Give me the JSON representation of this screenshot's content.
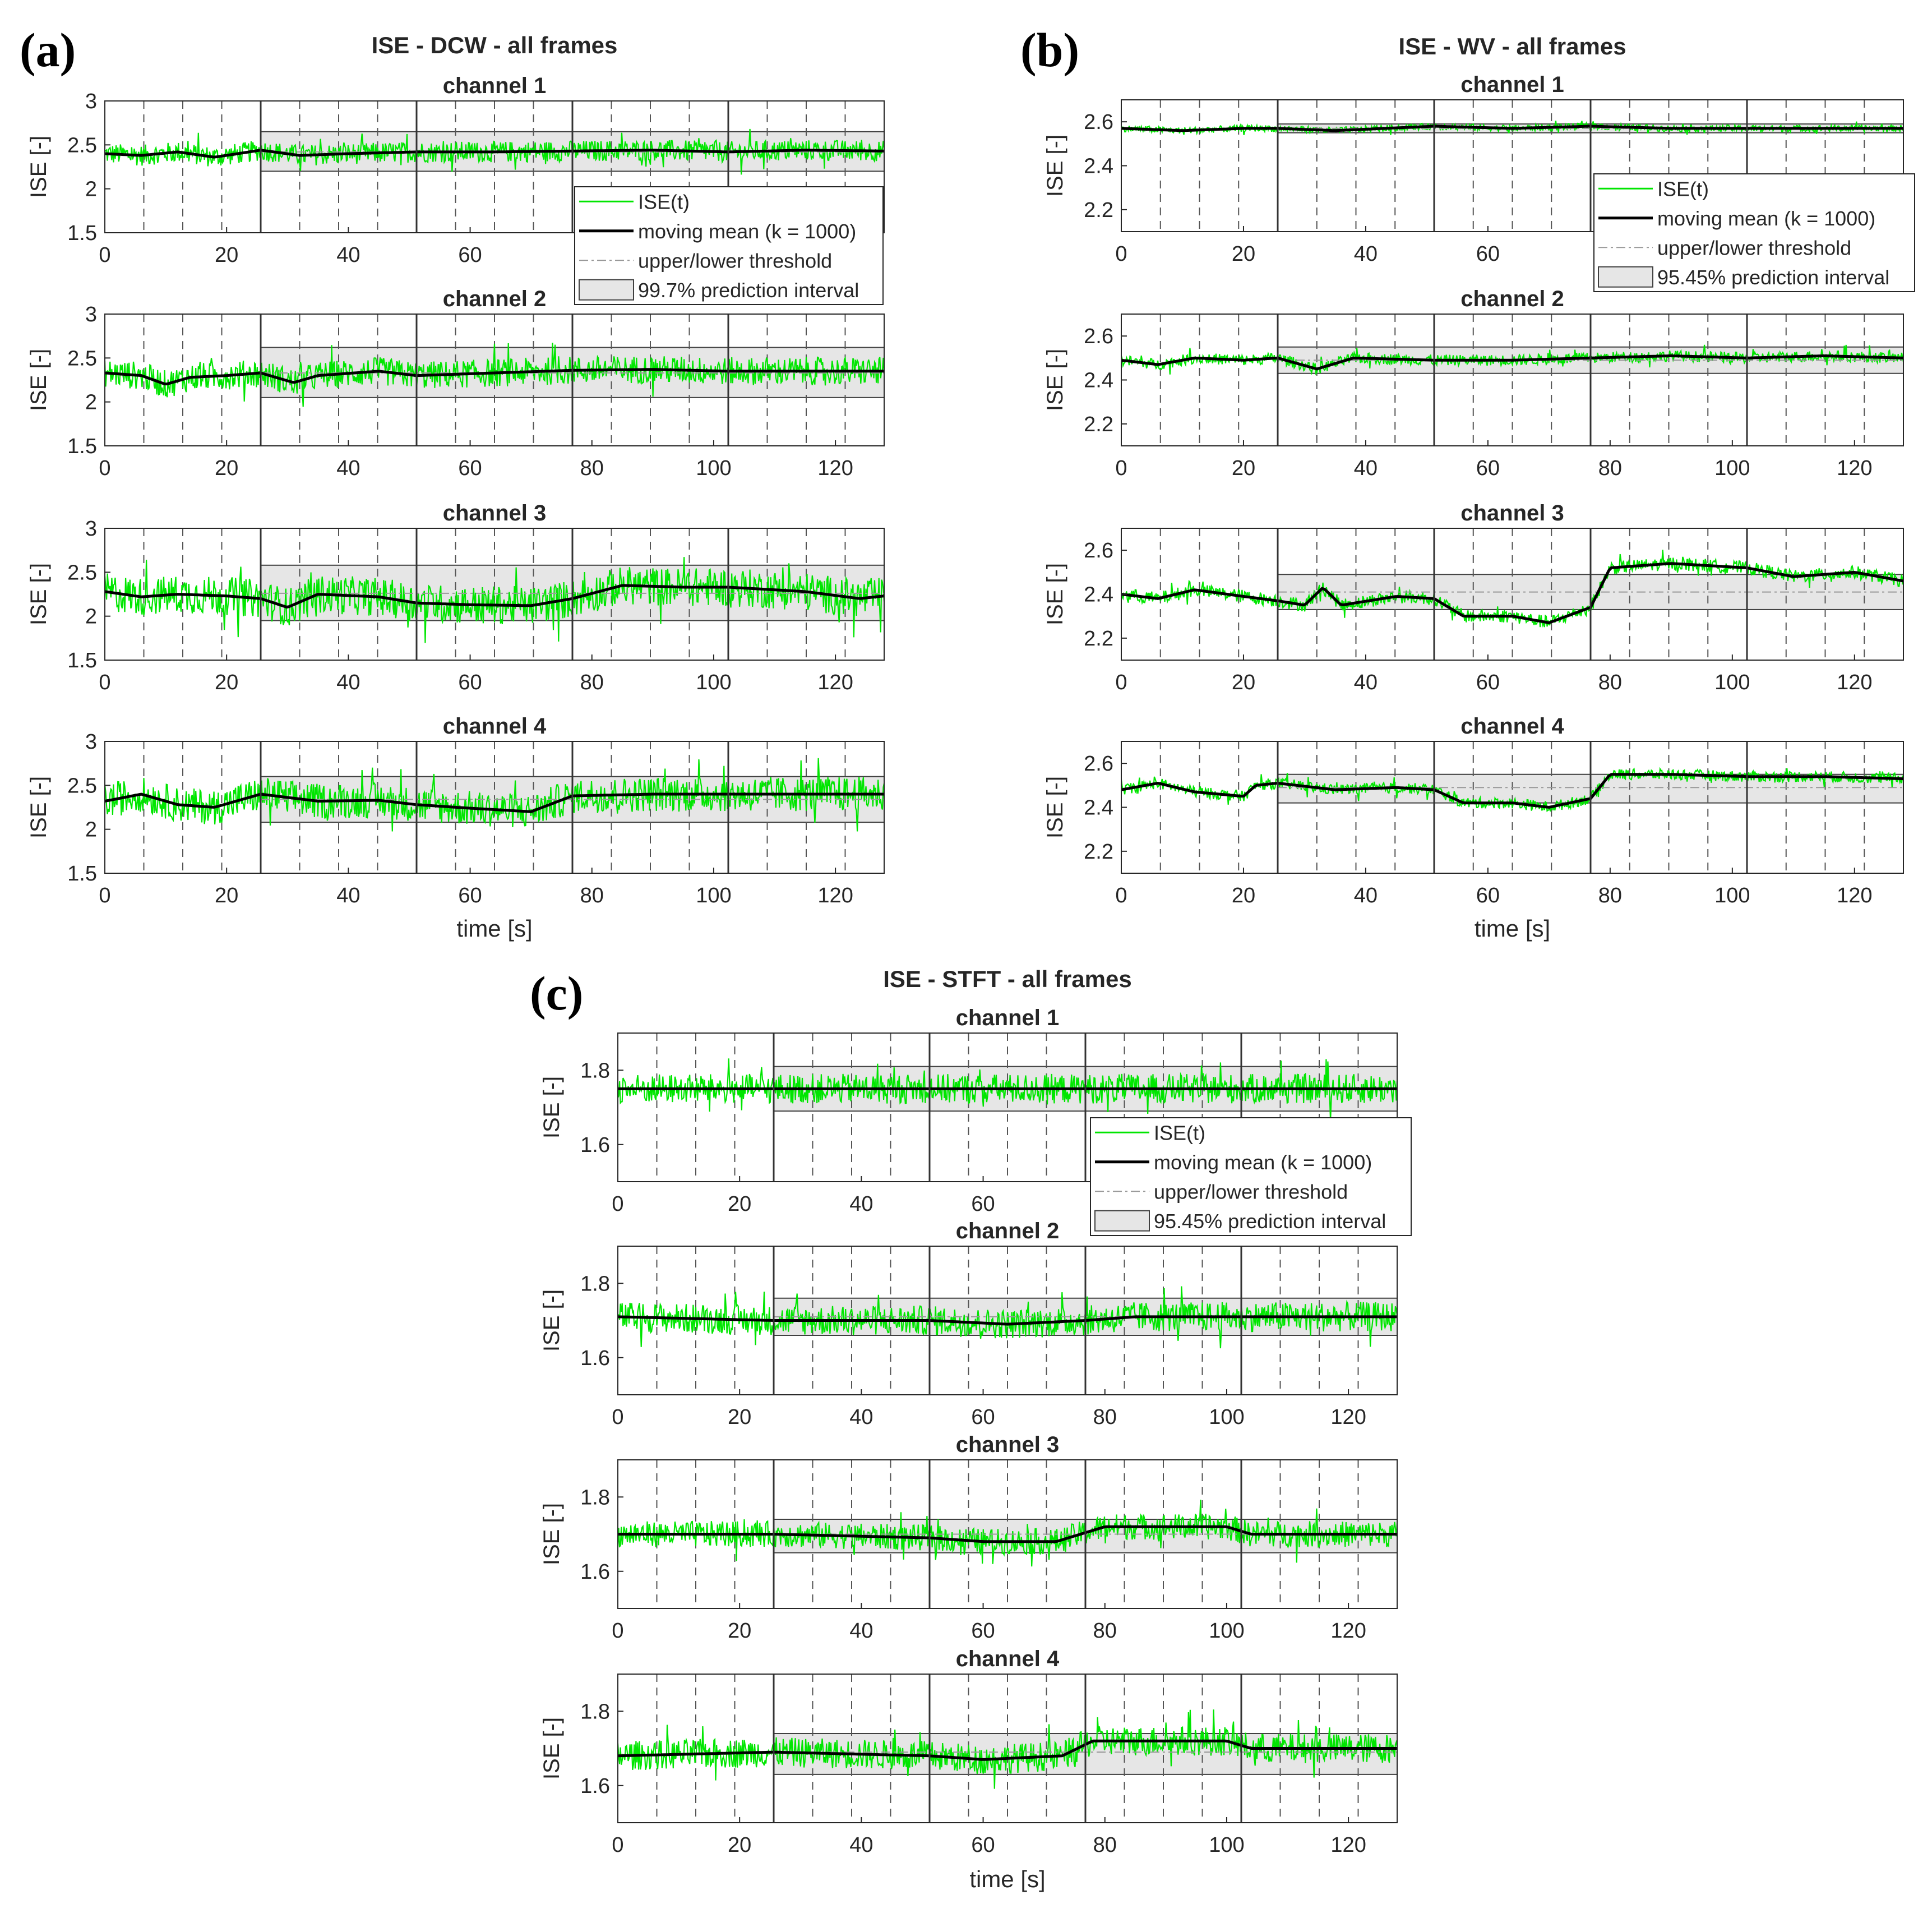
{
  "chart_data": [
    {
      "type": "line",
      "panel_label": "(a)",
      "title": "ISE - DCW - all frames",
      "xlabel": "time [s]",
      "ylabel": "ISE [-]",
      "xlim": [
        0,
        128
      ],
      "xticks": [
        0,
        20,
        40,
        60,
        80,
        100,
        120
      ],
      "ylim": [
        1.5,
        3
      ],
      "yticks": [
        1.5,
        2,
        2.5,
        3
      ],
      "ytick_labels": [
        "1.5",
        "2",
        "2.5",
        "3"
      ],
      "frame_boundaries": [
        25.6,
        51.2,
        76.8,
        102.4
      ],
      "event_lines": [
        6.4,
        12.8,
        19.2,
        32,
        38.4,
        44.8,
        57.6,
        64,
        70.4,
        83.2,
        89.6,
        96,
        108.8,
        115.2,
        121.6
      ],
      "legend": {
        "entries": [
          "ISE(t)",
          "moving mean (k = 1000)",
          "upper/lower threshold",
          "99.7% prediction interval"
        ],
        "channel": 0
      },
      "channels": [
        {
          "name": "channel 1",
          "baseline_mean": [
            [
              0,
              2.4
            ],
            [
              6,
              2.38
            ],
            [
              12,
              2.42
            ],
            [
              18,
              2.36
            ],
            [
              25.6,
              2.44
            ],
            [
              32,
              2.38
            ],
            [
              40,
              2.4
            ],
            [
              51.2,
              2.42
            ],
            [
              64,
              2.42
            ],
            [
              76.8,
              2.43
            ],
            [
              90,
              2.44
            ],
            [
              102.4,
              2.42
            ],
            [
              115,
              2.44
            ],
            [
              128,
              2.43
            ]
          ],
          "noise": 0.12,
          "pi": [
            2.2,
            2.65
          ],
          "threshold": 2.42
        },
        {
          "name": "channel 2",
          "baseline_mean": [
            [
              0,
              2.33
            ],
            [
              6,
              2.3
            ],
            [
              10,
              2.2
            ],
            [
              14,
              2.28
            ],
            [
              20,
              2.3
            ],
            [
              25.6,
              2.33
            ],
            [
              31,
              2.22
            ],
            [
              35,
              2.3
            ],
            [
              45,
              2.35
            ],
            [
              51.2,
              2.3
            ],
            [
              64,
              2.33
            ],
            [
              76.8,
              2.36
            ],
            [
              90,
              2.37
            ],
            [
              102.4,
              2.35
            ],
            [
              115,
              2.35
            ],
            [
              128,
              2.35
            ]
          ],
          "noise": 0.16,
          "pi": [
            2.05,
            2.62
          ],
          "threshold": 2.33
        },
        {
          "name": "channel 3",
          "baseline_mean": [
            [
              0,
              2.28
            ],
            [
              6,
              2.22
            ],
            [
              12,
              2.25
            ],
            [
              20,
              2.23
            ],
            [
              25.6,
              2.2
            ],
            [
              30,
              2.1
            ],
            [
              35,
              2.25
            ],
            [
              45,
              2.22
            ],
            [
              51.2,
              2.15
            ],
            [
              60,
              2.13
            ],
            [
              70,
              2.12
            ],
            [
              76.8,
              2.2
            ],
            [
              85,
              2.35
            ],
            [
              95,
              2.33
            ],
            [
              102.4,
              2.33
            ],
            [
              115,
              2.28
            ],
            [
              124,
              2.2
            ],
            [
              128,
              2.23
            ]
          ],
          "noise": 0.22,
          "pi": [
            1.95,
            2.58
          ],
          "threshold": 2.26
        },
        {
          "name": "channel 4",
          "baseline_mean": [
            [
              0,
              2.32
            ],
            [
              6,
              2.4
            ],
            [
              12,
              2.28
            ],
            [
              18,
              2.25
            ],
            [
              25.6,
              2.4
            ],
            [
              35,
              2.32
            ],
            [
              45,
              2.33
            ],
            [
              51.2,
              2.28
            ],
            [
              60,
              2.24
            ],
            [
              70,
              2.2
            ],
            [
              76.8,
              2.38
            ],
            [
              90,
              2.4
            ],
            [
              102.4,
              2.4
            ],
            [
              115,
              2.4
            ],
            [
              128,
              2.4
            ]
          ],
          "noise": 0.2,
          "pi": [
            2.08,
            2.6
          ],
          "threshold": 2.34
        }
      ]
    },
    {
      "type": "line",
      "panel_label": "(b)",
      "title": "ISE - WV - all frames",
      "xlabel": "time [s]",
      "ylabel": "ISE [-]",
      "xlim": [
        0,
        128
      ],
      "xticks": [
        0,
        20,
        40,
        60,
        80,
        100,
        120
      ],
      "ylim": [
        2.1,
        2.7
      ],
      "yticks": [
        2.2,
        2.4,
        2.6
      ],
      "ytick_labels": [
        "2.2",
        "2.4",
        "2.6"
      ],
      "frame_boundaries": [
        25.6,
        51.2,
        76.8,
        102.4
      ],
      "event_lines": [
        6.4,
        12.8,
        19.2,
        32,
        38.4,
        44.8,
        57.6,
        64,
        70.4,
        83.2,
        89.6,
        96,
        108.8,
        115.2,
        121.6
      ],
      "legend": {
        "entries": [
          "ISE(t)",
          "moving mean (k = 1000)",
          "upper/lower threshold",
          "95.45% prediction interval"
        ],
        "channel": 0
      },
      "channels": [
        {
          "name": "channel 1",
          "baseline_mean": [
            [
              0,
              2.57
            ],
            [
              10,
              2.56
            ],
            [
              20,
              2.57
            ],
            [
              25.6,
              2.57
            ],
            [
              35,
              2.56
            ],
            [
              51.2,
              2.58
            ],
            [
              64,
              2.57
            ],
            [
              76.8,
              2.58
            ],
            [
              90,
              2.57
            ],
            [
              102.4,
              2.57
            ],
            [
              115,
              2.57
            ],
            [
              128,
              2.57
            ]
          ],
          "noise": 0.015,
          "pi": [
            2.55,
            2.59
          ],
          "threshold": 2.57
        },
        {
          "name": "channel 2",
          "baseline_mean": [
            [
              0,
              2.49
            ],
            [
              6,
              2.47
            ],
            [
              12,
              2.5
            ],
            [
              20,
              2.49
            ],
            [
              25.6,
              2.5
            ],
            [
              32,
              2.45
            ],
            [
              38,
              2.5
            ],
            [
              51.2,
              2.49
            ],
            [
              64,
              2.49
            ],
            [
              76.8,
              2.5
            ],
            [
              90,
              2.51
            ],
            [
              102.4,
              2.5
            ],
            [
              115,
              2.51
            ],
            [
              128,
              2.5
            ]
          ],
          "noise": 0.025,
          "pi": [
            2.43,
            2.55
          ],
          "threshold": 2.49
        },
        {
          "name": "channel 3",
          "baseline_mean": [
            [
              0,
              2.4
            ],
            [
              6,
              2.38
            ],
            [
              12,
              2.42
            ],
            [
              20,
              2.39
            ],
            [
              25.6,
              2.37
            ],
            [
              30,
              2.35
            ],
            [
              33,
              2.43
            ],
            [
              36,
              2.35
            ],
            [
              45,
              2.39
            ],
            [
              51.2,
              2.38
            ],
            [
              56,
              2.3
            ],
            [
              64,
              2.3
            ],
            [
              70,
              2.27
            ],
            [
              76.8,
              2.34
            ],
            [
              80,
              2.52
            ],
            [
              90,
              2.54
            ],
            [
              102.4,
              2.52
            ],
            [
              110,
              2.48
            ],
            [
              120,
              2.5
            ],
            [
              128,
              2.46
            ]
          ],
          "noise": 0.03,
          "pi": [
            2.33,
            2.49
          ],
          "threshold": 2.41
        },
        {
          "name": "channel 4",
          "baseline_mean": [
            [
              0,
              2.48
            ],
            [
              6,
              2.51
            ],
            [
              12,
              2.47
            ],
            [
              20,
              2.45
            ],
            [
              22,
              2.5
            ],
            [
              25.6,
              2.51
            ],
            [
              35,
              2.48
            ],
            [
              45,
              2.49
            ],
            [
              51.2,
              2.48
            ],
            [
              56,
              2.42
            ],
            [
              64,
              2.42
            ],
            [
              70,
              2.4
            ],
            [
              76.8,
              2.44
            ],
            [
              80,
              2.55
            ],
            [
              90,
              2.55
            ],
            [
              102.4,
              2.54
            ],
            [
              115,
              2.54
            ],
            [
              128,
              2.53
            ]
          ],
          "noise": 0.025,
          "pi": [
            2.42,
            2.55
          ],
          "threshold": 2.49
        }
      ]
    },
    {
      "type": "line",
      "panel_label": "(c)",
      "title": "ISE - STFT - all frames",
      "xlabel": "time [s]",
      "ylabel": "ISE [-]",
      "xlim": [
        0,
        128
      ],
      "xticks": [
        0,
        20,
        40,
        60,
        80,
        100,
        120
      ],
      "ylim": [
        1.5,
        1.9
      ],
      "yticks": [
        1.6,
        1.8
      ],
      "ytick_labels": [
        "1.6",
        "1.8"
      ],
      "frame_boundaries": [
        25.6,
        51.2,
        76.8,
        102.4
      ],
      "event_lines": [
        6.4,
        12.8,
        19.2,
        32,
        38.4,
        44.8,
        57.6,
        64,
        70.4,
        83.2,
        89.6,
        96,
        108.8,
        115.2,
        121.6
      ],
      "legend": {
        "entries": [
          "ISE(t)",
          "moving mean (k = 1000)",
          "upper/lower threshold",
          "95.45% prediction interval"
        ],
        "channel": 0
      },
      "channels": [
        {
          "name": "channel 1",
          "baseline_mean": [
            [
              0,
              1.75
            ],
            [
              25.6,
              1.75
            ],
            [
              51.2,
              1.75
            ],
            [
              76.8,
              1.75
            ],
            [
              102.4,
              1.75
            ],
            [
              128,
              1.75
            ]
          ],
          "noise": 0.04,
          "pi": [
            1.69,
            1.81
          ],
          "threshold": 1.75
        },
        {
          "name": "channel 2",
          "baseline_mean": [
            [
              0,
              1.71
            ],
            [
              25.6,
              1.7
            ],
            [
              40,
              1.7
            ],
            [
              51.2,
              1.7
            ],
            [
              64,
              1.69
            ],
            [
              76.8,
              1.7
            ],
            [
              85,
              1.71
            ],
            [
              102.4,
              1.71
            ],
            [
              128,
              1.71
            ]
          ],
          "noise": 0.04,
          "pi": [
            1.66,
            1.76
          ],
          "threshold": 1.71
        },
        {
          "name": "channel 3",
          "baseline_mean": [
            [
              0,
              1.7
            ],
            [
              25.6,
              1.7
            ],
            [
              51.2,
              1.69
            ],
            [
              60,
              1.68
            ],
            [
              72,
              1.68
            ],
            [
              80,
              1.72
            ],
            [
              100,
              1.72
            ],
            [
              104,
              1.7
            ],
            [
              128,
              1.7
            ]
          ],
          "noise": 0.035,
          "pi": [
            1.65,
            1.74
          ],
          "threshold": 1.7
        },
        {
          "name": "channel 4",
          "baseline_mean": [
            [
              0,
              1.68
            ],
            [
              25.6,
              1.69
            ],
            [
              51.2,
              1.68
            ],
            [
              60,
              1.67
            ],
            [
              73,
              1.68
            ],
            [
              78,
              1.72
            ],
            [
              100,
              1.72
            ],
            [
              104,
              1.7
            ],
            [
              128,
              1.7
            ]
          ],
          "noise": 0.04,
          "pi": [
            1.63,
            1.74
          ],
          "threshold": 1.69
        }
      ]
    }
  ]
}
